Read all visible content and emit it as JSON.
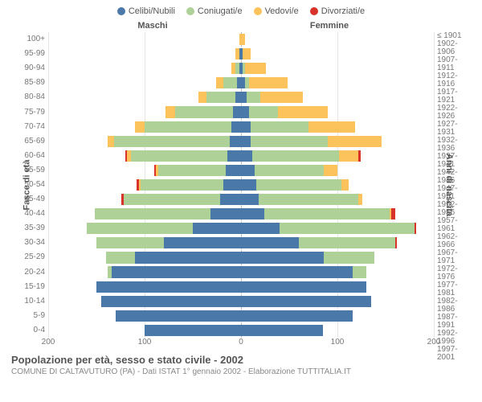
{
  "chart": {
    "type": "population-pyramid",
    "legend": [
      {
        "label": "Celibi/Nubili",
        "color": "#4a78a9"
      },
      {
        "label": "Coniugati/e",
        "color": "#aed197"
      },
      {
        "label": "Vedovi/e",
        "color": "#fcc35d"
      },
      {
        "label": "Divorziati/e",
        "color": "#d7332a"
      }
    ],
    "gender_labels": {
      "left": "Maschi",
      "right": "Femmine"
    },
    "y_left_title": "Fasce di età",
    "y_right_title": "Anni di nascita",
    "x_max": 200,
    "x_ticks": [
      200,
      100,
      0,
      100,
      200
    ],
    "background": "#ffffff",
    "grid_color": "#e5e5e5",
    "center_line_color": "#bbbbbb",
    "age_labels": [
      "100+",
      "95-99",
      "90-94",
      "85-89",
      "80-84",
      "75-79",
      "70-74",
      "65-69",
      "60-64",
      "55-59",
      "50-54",
      "45-49",
      "40-44",
      "35-39",
      "30-34",
      "25-29",
      "20-24",
      "15-19",
      "10-14",
      "5-9",
      "0-4"
    ],
    "birth_labels": [
      "≤ 1901",
      "1902-1906",
      "1907-1911",
      "1912-1916",
      "1917-1921",
      "1922-1926",
      "1927-1931",
      "1932-1936",
      "1937-1941",
      "1942-1946",
      "1947-1951",
      "1952-1956",
      "1957-1961",
      "1962-1966",
      "1967-1971",
      "1972-1976",
      "1977-1981",
      "1982-1986",
      "1987-1991",
      "1992-1996",
      "1997-2001"
    ],
    "rows": [
      {
        "m": {
          "c": 0,
          "co": 0,
          "v": 2,
          "d": 0
        },
        "f": {
          "c": 0,
          "co": 0,
          "v": 4,
          "d": 0
        }
      },
      {
        "m": {
          "c": 2,
          "co": 0,
          "v": 4,
          "d": 0
        },
        "f": {
          "c": 2,
          "co": 0,
          "v": 8,
          "d": 0
        }
      },
      {
        "m": {
          "c": 2,
          "co": 4,
          "v": 4,
          "d": 0
        },
        "f": {
          "c": 2,
          "co": 2,
          "v": 22,
          "d": 0
        }
      },
      {
        "m": {
          "c": 4,
          "co": 14,
          "v": 8,
          "d": 0
        },
        "f": {
          "c": 4,
          "co": 4,
          "v": 40,
          "d": 0
        }
      },
      {
        "m": {
          "c": 6,
          "co": 30,
          "v": 8,
          "d": 0
        },
        "f": {
          "c": 6,
          "co": 14,
          "v": 44,
          "d": 0
        }
      },
      {
        "m": {
          "c": 8,
          "co": 60,
          "v": 10,
          "d": 0
        },
        "f": {
          "c": 8,
          "co": 30,
          "v": 52,
          "d": 0
        }
      },
      {
        "m": {
          "c": 10,
          "co": 90,
          "v": 10,
          "d": 0
        },
        "f": {
          "c": 10,
          "co": 60,
          "v": 48,
          "d": 0
        }
      },
      {
        "m": {
          "c": 12,
          "co": 120,
          "v": 6,
          "d": 0
        },
        "f": {
          "c": 10,
          "co": 80,
          "v": 56,
          "d": 0
        }
      },
      {
        "m": {
          "c": 14,
          "co": 100,
          "v": 4,
          "d": 2
        },
        "f": {
          "c": 12,
          "co": 90,
          "v": 20,
          "d": 2
        }
      },
      {
        "m": {
          "c": 16,
          "co": 70,
          "v": 2,
          "d": 2
        },
        "f": {
          "c": 14,
          "co": 72,
          "v": 14,
          "d": 0
        }
      },
      {
        "m": {
          "c": 18,
          "co": 86,
          "v": 2,
          "d": 2
        },
        "f": {
          "c": 16,
          "co": 88,
          "v": 8,
          "d": 0
        }
      },
      {
        "m": {
          "c": 22,
          "co": 100,
          "v": 0,
          "d": 2
        },
        "f": {
          "c": 18,
          "co": 104,
          "v": 4,
          "d": 0
        }
      },
      {
        "m": {
          "c": 32,
          "co": 120,
          "v": 0,
          "d": 0
        },
        "f": {
          "c": 24,
          "co": 130,
          "v": 2,
          "d": 4
        }
      },
      {
        "m": {
          "c": 50,
          "co": 110,
          "v": 0,
          "d": 0
        },
        "f": {
          "c": 40,
          "co": 140,
          "v": 0,
          "d": 2
        }
      },
      {
        "m": {
          "c": 80,
          "co": 70,
          "v": 0,
          "d": 0
        },
        "f": {
          "c": 60,
          "co": 100,
          "v": 0,
          "d": 2
        }
      },
      {
        "m": {
          "c": 110,
          "co": 30,
          "v": 0,
          "d": 0
        },
        "f": {
          "c": 86,
          "co": 52,
          "v": 0,
          "d": 0
        }
      },
      {
        "m": {
          "c": 134,
          "co": 4,
          "v": 0,
          "d": 0
        },
        "f": {
          "c": 116,
          "co": 14,
          "v": 0,
          "d": 0
        }
      },
      {
        "m": {
          "c": 150,
          "co": 0,
          "v": 0,
          "d": 0
        },
        "f": {
          "c": 130,
          "co": 0,
          "v": 0,
          "d": 0
        }
      },
      {
        "m": {
          "c": 145,
          "co": 0,
          "v": 0,
          "d": 0
        },
        "f": {
          "c": 135,
          "co": 0,
          "v": 0,
          "d": 0
        }
      },
      {
        "m": {
          "c": 130,
          "co": 0,
          "v": 0,
          "d": 0
        },
        "f": {
          "c": 116,
          "co": 0,
          "v": 0,
          "d": 0
        }
      },
      {
        "m": {
          "c": 100,
          "co": 0,
          "v": 0,
          "d": 0
        },
        "f": {
          "c": 85,
          "co": 0,
          "v": 0,
          "d": 0
        }
      }
    ],
    "footer": {
      "title": "Popolazione per età, sesso e stato civile - 2002",
      "subtitle": "COMUNE DI CALTAVUTURO (PA) - Dati ISTAT 1° gennaio 2002 - Elaborazione TUTTITALIA.IT"
    }
  }
}
